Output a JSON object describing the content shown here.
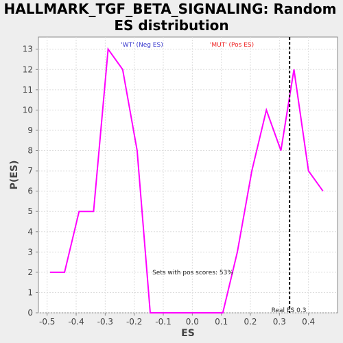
{
  "chart_data": {
    "type": "line",
    "title_line1": "HALLMARK_TGF_BETA_SIGNALING: Random",
    "title_line2": "ES distribution",
    "xlabel": "ES",
    "ylabel": "P(ES)",
    "xlim": [
      -0.53,
      0.5
    ],
    "ylim": [
      0,
      13.6
    ],
    "xticks": [
      -0.5,
      -0.4,
      -0.3,
      -0.2,
      -0.1,
      0.0,
      0.1,
      0.2,
      0.3,
      0.4
    ],
    "xtick_labels": [
      "-0.5",
      "-0.4",
      "-0.3",
      "-0.2",
      "-0.1",
      "0.0",
      "0.1",
      "0.2",
      "0.3",
      "0.4"
    ],
    "yticks": [
      0,
      1,
      2,
      3,
      4,
      5,
      6,
      7,
      8,
      9,
      10,
      11,
      12,
      13
    ],
    "ytick_labels": [
      "0",
      "1",
      "2",
      "3",
      "4",
      "5",
      "6",
      "7",
      "8",
      "9",
      "10",
      "11",
      "12",
      "13"
    ],
    "grid": true,
    "series": [
      {
        "color": "#ff00ff",
        "x": [
          -0.49,
          -0.44,
          -0.39,
          -0.34,
          -0.29,
          -0.24,
          -0.19,
          -0.145,
          -0.1,
          -0.05,
          0.0,
          0.05,
          0.105,
          0.155,
          0.205,
          0.255,
          0.305,
          0.35,
          0.4,
          0.45
        ],
        "y": [
          2,
          2,
          5,
          5,
          13,
          12,
          8,
          0,
          0,
          0,
          0,
          0,
          0,
          3,
          7,
          10,
          8,
          12,
          7,
          6
        ]
      }
    ],
    "reference_line": {
      "x": 0.335,
      "style": "dashed",
      "color": "#000000"
    },
    "annotations": {
      "neg_label": "'WT' (Neg ES)",
      "neg_color": "#3333cc",
      "pos_label": "'MUT' (Pos ES)",
      "pos_color": "#ee2222",
      "pos_scores_text": "Sets with pos scores: 53%",
      "real_es_text": "Real ES 0.3"
    }
  }
}
